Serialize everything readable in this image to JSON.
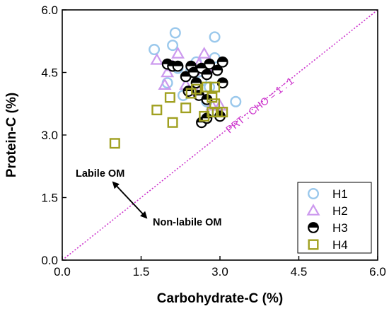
{
  "chart_data": {
    "type": "scatter",
    "xlabel": "Carbohydrate-C (%)",
    "ylabel": "Protein-C (%)",
    "xlim": [
      0,
      6
    ],
    "ylim": [
      0,
      6
    ],
    "x_ticks": [
      "0.0",
      "1.5",
      "3.0",
      "4.5",
      "6.0"
    ],
    "y_ticks": [
      "0.0",
      "1.5",
      "3.0",
      "4.5",
      "6.0"
    ],
    "grid": false,
    "legend_position": "bottom-right",
    "reference_line": {
      "label": "PRT : CHO = 1 : 1",
      "slope": 1,
      "color": "#cc33cc"
    },
    "annotations": [
      "Labile OM",
      "Non-labile OM"
    ],
    "series": [
      {
        "name": "H1",
        "marker": "circle-open",
        "color": "#9ac8ec",
        "points": [
          [
            1.75,
            5.05
          ],
          [
            2.15,
            5.45
          ],
          [
            2.1,
            5.15
          ],
          [
            2.9,
            5.35
          ],
          [
            2.0,
            4.25
          ],
          [
            2.2,
            4.6
          ],
          [
            2.45,
            4.55
          ],
          [
            2.3,
            3.95
          ],
          [
            2.55,
            4.75
          ],
          [
            2.65,
            4.3
          ],
          [
            2.8,
            4.15
          ],
          [
            2.9,
            4.85
          ],
          [
            2.75,
            3.8
          ],
          [
            2.95,
            3.55
          ],
          [
            3.3,
            3.8
          ]
        ]
      },
      {
        "name": "H2",
        "marker": "triangle-open",
        "color": "#cc99ee",
        "points": [
          [
            1.8,
            4.8
          ],
          [
            2.2,
            4.95
          ],
          [
            2.0,
            4.5
          ],
          [
            2.1,
            4.65
          ],
          [
            1.95,
            4.2
          ],
          [
            2.5,
            4.55
          ],
          [
            2.6,
            4.7
          ],
          [
            2.35,
            4.2
          ],
          [
            2.7,
            4.95
          ],
          [
            2.75,
            4.6
          ],
          [
            2.6,
            4.05
          ],
          [
            2.85,
            3.7
          ],
          [
            3.0,
            3.7
          ]
        ]
      },
      {
        "name": "H3",
        "marker": "half-filled-circle",
        "color": "#000000",
        "points": [
          [
            2.0,
            4.7
          ],
          [
            2.1,
            4.65
          ],
          [
            2.2,
            4.65
          ],
          [
            2.35,
            4.4
          ],
          [
            2.45,
            4.65
          ],
          [
            2.5,
            4.5
          ],
          [
            2.4,
            4.05
          ],
          [
            2.55,
            4.25
          ],
          [
            2.6,
            3.95
          ],
          [
            2.65,
            4.6
          ],
          [
            2.75,
            4.45
          ],
          [
            2.75,
            3.85
          ],
          [
            2.8,
            4.7
          ],
          [
            2.95,
            4.55
          ],
          [
            3.05,
            4.75
          ],
          [
            3.05,
            4.25
          ],
          [
            2.65,
            3.3
          ],
          [
            2.75,
            3.4
          ],
          [
            3.0,
            3.45
          ]
        ]
      },
      {
        "name": "H4",
        "marker": "square-open",
        "color": "#a0a020",
        "points": [
          [
            1.0,
            2.8
          ],
          [
            1.8,
            3.6
          ],
          [
            2.1,
            3.3
          ],
          [
            2.05,
            3.9
          ],
          [
            2.35,
            3.65
          ],
          [
            2.45,
            4.0
          ],
          [
            2.55,
            4.1
          ],
          [
            2.7,
            3.45
          ],
          [
            2.75,
            4.15
          ],
          [
            2.85,
            3.9
          ],
          [
            2.85,
            3.55
          ],
          [
            2.9,
            3.75
          ],
          [
            2.9,
            4.15
          ],
          [
            2.95,
            3.55
          ],
          [
            3.05,
            3.55
          ]
        ]
      }
    ]
  }
}
